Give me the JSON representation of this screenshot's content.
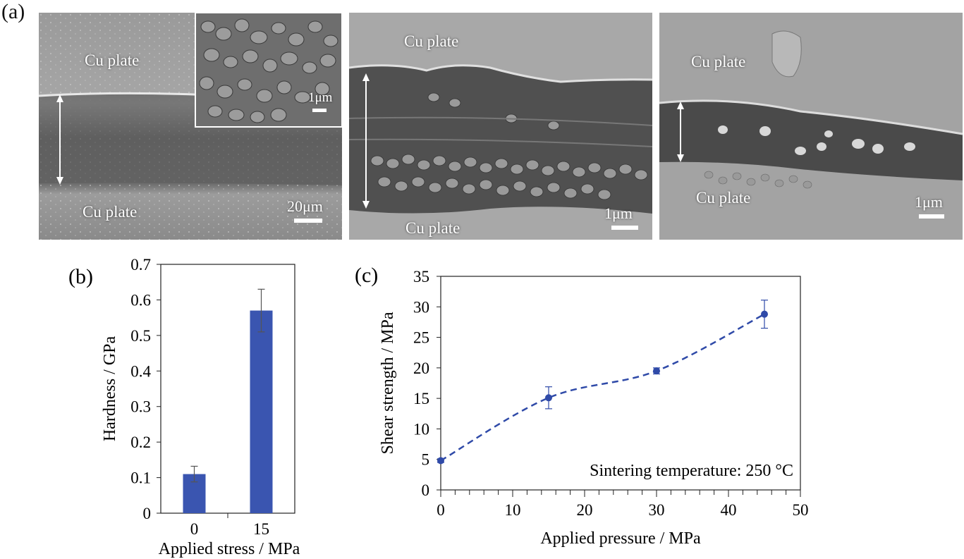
{
  "panel_a": {
    "label": "(a)",
    "images": [
      {
        "top_label": "Cu plate",
        "bottom_label": "Cu plate",
        "scale": "20μm",
        "inset_scale": "1μm"
      },
      {
        "top_label": "Cu plate",
        "bottom_label": "Cu plate",
        "scale": "1μm"
      },
      {
        "top_label": "Cu plate",
        "bottom_label": "Cu plate",
        "scale": "1μm"
      }
    ]
  },
  "chart_data": [
    {
      "type": "bar",
      "panel_label": "(b)",
      "categories": [
        "0",
        "15"
      ],
      "values": [
        0.11,
        0.57
      ],
      "errors": [
        0.022,
        0.06
      ],
      "xlabel": "Applied stress / MPa",
      "ylabel": "Hardness / GPa",
      "ylim": [
        0,
        0.7
      ],
      "yticks": [
        "0",
        "0.1",
        "0.2",
        "0.3",
        "0.4",
        "0.5",
        "0.6",
        "0.7"
      ],
      "bar_color": "#3a55b0"
    },
    {
      "type": "line",
      "panel_label": "(c)",
      "x": [
        0,
        15,
        30,
        45
      ],
      "y": [
        4.8,
        15.1,
        19.5,
        28.8
      ],
      "errors": [
        0.3,
        1.8,
        0.5,
        2.3
      ],
      "xlabel": "Applied pressure / MPa",
      "ylabel": "Shear strength / MPa",
      "xlim": [
        0,
        50
      ],
      "ylim": [
        0,
        35
      ],
      "xticks": [
        "0",
        "10",
        "20",
        "30",
        "40",
        "50"
      ],
      "yticks": [
        "0",
        "5",
        "10",
        "15",
        "20",
        "25",
        "30",
        "35"
      ],
      "annotation": "Sintering temperature: 250 °C",
      "line_color": "#2f4aa8"
    }
  ]
}
